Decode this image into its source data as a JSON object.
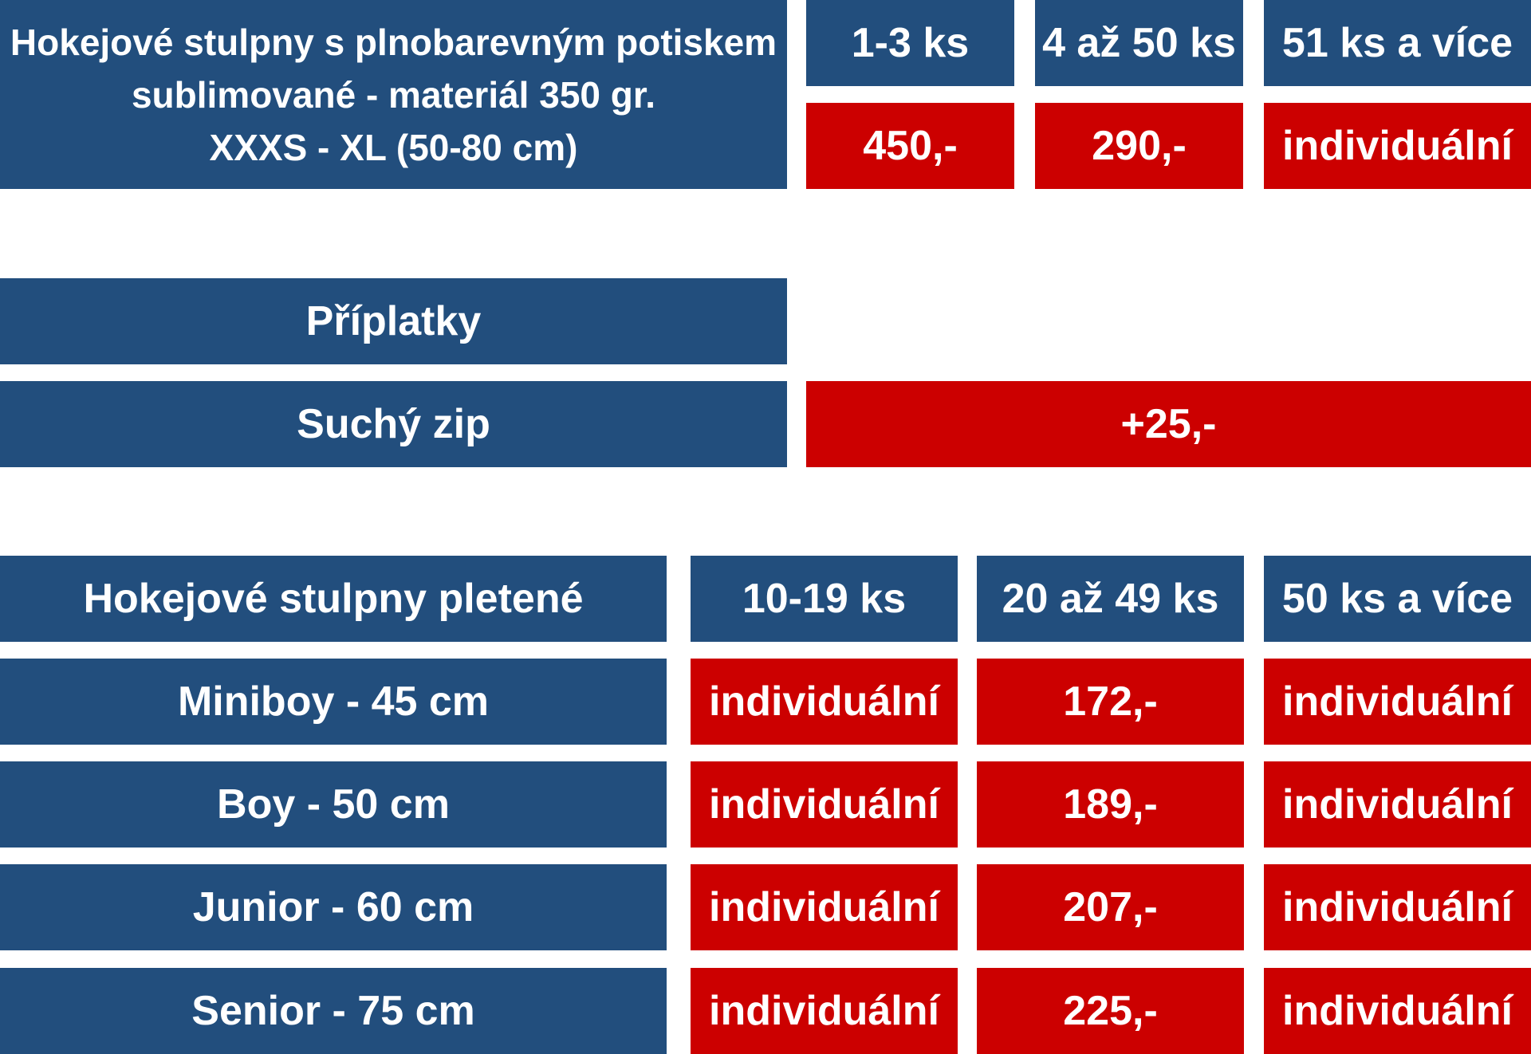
{
  "sublimated": {
    "title_lines": [
      "Hokejové stulpny s plnobarevným potiskem",
      "sublimované - materiál 350 gr.",
      "XXXS - XL  (50-80 cm)"
    ],
    "tiers": [
      "1-3 ks",
      "4 až 50 ks",
      "51 ks a více"
    ],
    "prices": [
      "450,-",
      "290,-",
      "individuální"
    ]
  },
  "surcharges": {
    "title": "Příplatky",
    "items": [
      {
        "label": "Suchý zip",
        "price": "+25,-"
      }
    ]
  },
  "knitted": {
    "title": "Hokejové stulpny pletené",
    "tiers": [
      "10-19 ks",
      "20 až 49 ks",
      "50 ks a více"
    ],
    "rows": [
      {
        "label": "Miniboy - 45 cm",
        "prices": [
          "individuální",
          "172,-",
          "individuální"
        ]
      },
      {
        "label": "Boy - 50 cm",
        "prices": [
          "individuální",
          "189,-",
          "individuální"
        ]
      },
      {
        "label": "Junior - 60 cm",
        "prices": [
          "individuální",
          "207,-",
          "individuální"
        ]
      },
      {
        "label": "Senior - 75 cm",
        "prices": [
          "individuální",
          "225,-",
          "individuální"
        ]
      }
    ]
  },
  "colors": {
    "header_blue": "#224e7d",
    "price_red": "#cc0000",
    "text": "#ffffff"
  }
}
